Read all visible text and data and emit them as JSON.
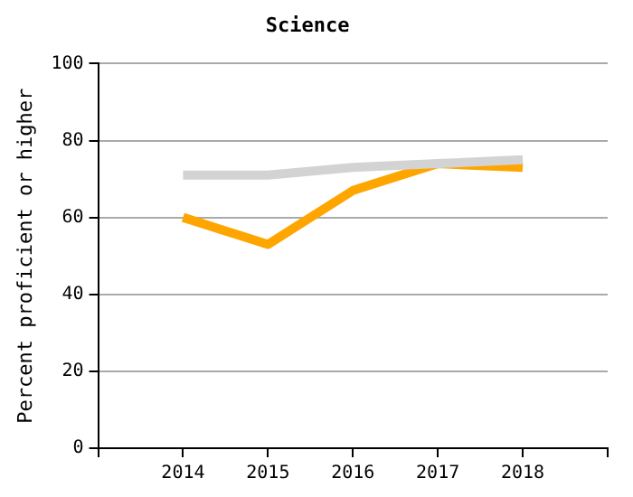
{
  "chart_data": {
    "type": "line",
    "title": "Science",
    "ylabel": "Percent proficient or higher",
    "x": [
      2014,
      2015,
      2016,
      2017,
      2018
    ],
    "series": [
      {
        "color": "#d3d3d3",
        "values": [
          71,
          71,
          73,
          74,
          75
        ]
      },
      {
        "color": "#ffa500",
        "values": [
          60,
          53,
          67,
          74,
          73
        ]
      }
    ],
    "xlim": [
      2013,
      2019
    ],
    "xticks": [
      {
        "value": 2013,
        "label": null
      },
      2014,
      2015,
      2016,
      2017,
      2018,
      {
        "value": 2019,
        "label": null
      }
    ],
    "ylim": [
      0,
      100
    ],
    "yticks": [
      0,
      20,
      40,
      60,
      80,
      100
    ],
    "grid": "y",
    "legend": false,
    "marker": "none",
    "line_style": "solid"
  }
}
